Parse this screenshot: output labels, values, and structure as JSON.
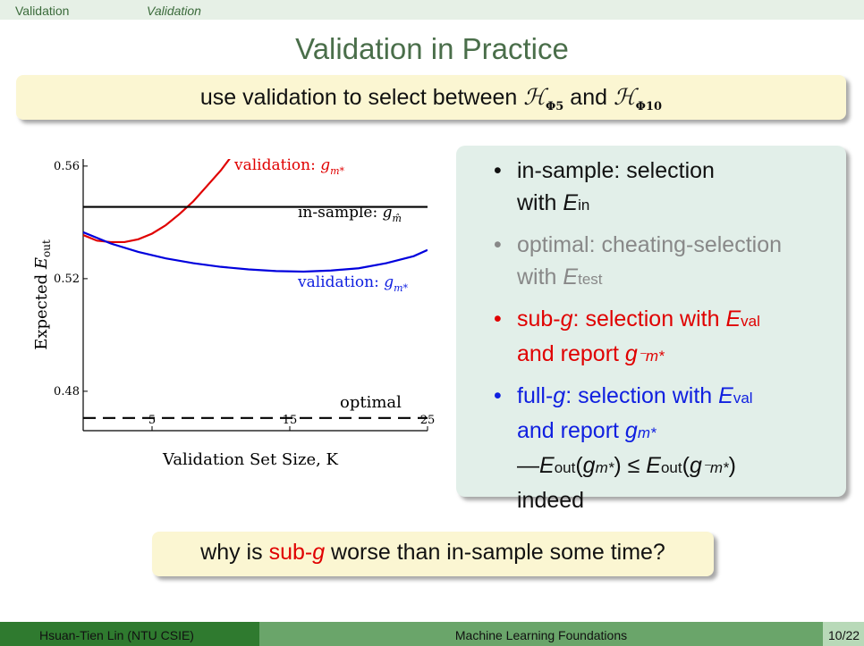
{
  "nav": {
    "section": "Validation",
    "subsection": "Validation"
  },
  "title": "Validation in Practice",
  "top_callout": {
    "prefix": "use validation to select between ",
    "h1_sub": "Φ5",
    "mid": " and ",
    "h2_sub": "Φ10"
  },
  "chart_data": {
    "type": "line",
    "xlabel": "Validation Set Size, K",
    "ylabel": "Expected E_out",
    "ylabel_main": "Expected ",
    "ylabel_sub": "out",
    "xlim": [
      0,
      25
    ],
    "ylim": [
      0.466,
      0.5625
    ],
    "xticks": [
      "5",
      "15",
      "25"
    ],
    "yticks": [
      "0.48",
      "0.52",
      "0.56"
    ],
    "series": [
      {
        "name": "validation: g⁻m*",
        "color": "#e00000",
        "style": "solid",
        "x": [
          0,
          1,
          2,
          3,
          4,
          5,
          6,
          7,
          8,
          9,
          10,
          11,
          12
        ],
        "y": [
          0.5355,
          0.5335,
          0.533,
          0.533,
          0.534,
          0.536,
          0.539,
          0.543,
          0.5475,
          0.553,
          0.5585,
          0.565,
          0.5715
        ]
      },
      {
        "name": "in-sample: gm̂",
        "color": "#000000",
        "style": "solid",
        "x": [
          0,
          25
        ],
        "y": [
          0.5455,
          0.5455
        ]
      },
      {
        "name": "validation: gm*",
        "color": "#0000dd",
        "style": "solid",
        "x": [
          0,
          2,
          4,
          6,
          8,
          10,
          12,
          14,
          16,
          18,
          20,
          22,
          24,
          25
        ],
        "y": [
          0.5365,
          0.5325,
          0.5295,
          0.5272,
          0.5255,
          0.5242,
          0.5233,
          0.5227,
          0.5225,
          0.5229,
          0.5237,
          0.5255,
          0.528,
          0.5302
        ]
      },
      {
        "name": "optimal",
        "color": "#000000",
        "style": "dashed",
        "x": [
          0,
          25
        ],
        "y": [
          0.4705,
          0.4705
        ]
      }
    ],
    "labels": {
      "sub_g_main": "validation: ",
      "sub_g_sym": "g",
      "in_sample_main": "in-sample: ",
      "in_sample_sym": "g",
      "full_g_main": "validation: ",
      "full_g_sym": "g",
      "optimal": "optimal"
    }
  },
  "bullets": [
    {
      "a": "in-sample: selection",
      "b": "with ",
      "e": "E",
      "sub": "in"
    },
    {
      "a": "optimal: cheating-selection",
      "b": "with ",
      "e": "E",
      "sub": "test"
    },
    {
      "a": "sub-",
      "g": "g",
      "c": ": selection with ",
      "e": "E",
      "sub": "val",
      "d": "and report "
    },
    {
      "a": "full-",
      "g": "g",
      "c": ": selection with ",
      "e": "E",
      "sub": "val",
      "d": "and report ",
      "f": "indeed"
    }
  ],
  "bottom_callout": {
    "prefix": "why is ",
    "red": "sub-",
    "red_g": "g",
    "suffix": " worse than in-sample some time?"
  },
  "footer": {
    "author": "Hsuan-Tien Lin  (NTU CSIE)",
    "course": "Machine Learning Foundations",
    "page": "10/22"
  }
}
